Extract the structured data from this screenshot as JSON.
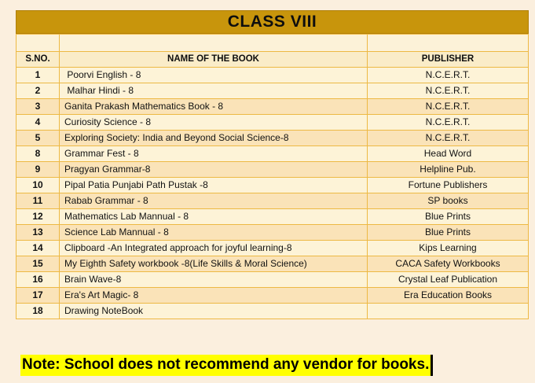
{
  "title": "CLASS VIII",
  "table": {
    "columns": [
      "S.NO.",
      "NAME OF THE BOOK",
      "PUBLISHER"
    ],
    "rows": [
      {
        "sno": "1",
        "name": " Poorvi English - 8",
        "publisher": "N.C.E.R.T."
      },
      {
        "sno": "2",
        "name": " Malhar Hindi - 8",
        "publisher": "N.C.E.R.T."
      },
      {
        "sno": "3",
        "name": "Ganita Prakash Mathematics Book - 8",
        "publisher": "N.C.E.R.T."
      },
      {
        "sno": "4",
        "name": "Curiosity Science - 8",
        "publisher": "N.C.E.R.T."
      },
      {
        "sno": "5",
        "name": "Exploring Society: India and Beyond Social Science-8",
        "publisher": "N.C.E.R.T."
      },
      {
        "sno": "8",
        "name": "Grammar Fest - 8",
        "publisher": "Head Word"
      },
      {
        "sno": "9",
        "name": "Pragyan Grammar-8",
        "publisher": "Helpline Pub."
      },
      {
        "sno": "10",
        "name": "Pipal Patia Punjabi Path Pustak -8",
        "publisher": "Fortune Publishers"
      },
      {
        "sno": "11",
        "name": "Rabab Grammar - 8",
        "publisher": "SP books"
      },
      {
        "sno": "12",
        "name": "Mathematics Lab Mannual - 8",
        "publisher": "Blue Prints"
      },
      {
        "sno": "13",
        "name": "Science Lab Mannual - 8",
        "publisher": "Blue Prints"
      },
      {
        "sno": "14",
        "name": "Clipboard -An Integrated approach for joyful learning-8",
        "publisher": "Kips Learning"
      },
      {
        "sno": "15",
        "name": "My Eighth Safety workbook -8(Life Skills & Moral Science)",
        "publisher": "CACA Safety Workbooks"
      },
      {
        "sno": "16",
        "name": "Brain Wave-8",
        "publisher": "Crystal Leaf Publication"
      },
      {
        "sno": "17",
        "name": "Era's Art Magic- 8",
        "publisher": "Era Education Books"
      },
      {
        "sno": "18",
        "name": "Drawing NoteBook",
        "publisher": ""
      }
    ]
  },
  "note": "Note: School does not recommend any vendor for books.",
  "colors": {
    "page_bg": "#FBEFDE",
    "title_bar_bg": "#C8950C",
    "table_border": "#EDB944",
    "row_light_bg": "#FDF3D7",
    "row_tan_bg": "#FAE3B8",
    "header_row_bg": "#FAECC8",
    "spacer_row_bg": "#FCF2D8",
    "note_highlight_bg": "#FFFF00",
    "text_color": "#121212"
  }
}
